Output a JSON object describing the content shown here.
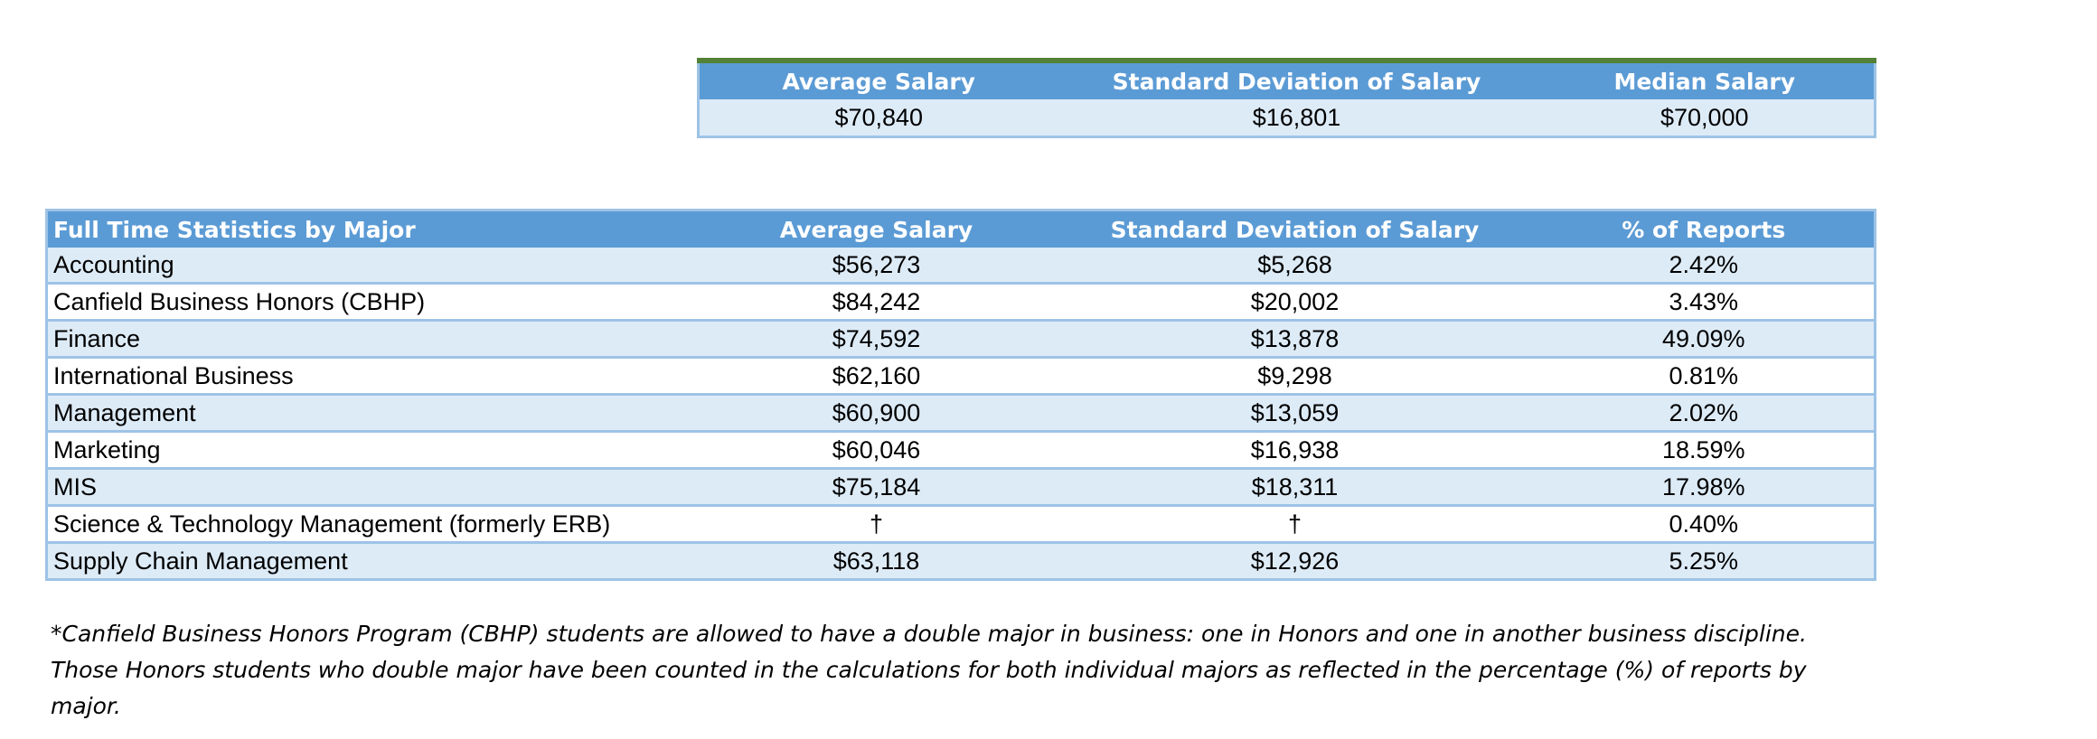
{
  "summary": {
    "headers": [
      "Average Salary",
      "Standard Deviation of Salary",
      "Median Salary"
    ],
    "values": [
      "$70,840",
      "$16,801",
      "$70,000"
    ]
  },
  "majors": {
    "headers": [
      "Full Time  Statistics by Major",
      "Average Salary",
      "Standard Deviation of Salary",
      "% of Reports"
    ],
    "rows": [
      [
        "Accounting",
        "$56,273",
        "$5,268",
        "2.42%"
      ],
      [
        "Canfield Business Honors (CBHP)",
        "$84,242",
        "$20,002",
        "3.43%"
      ],
      [
        "Finance",
        "$74,592",
        "$13,878",
        "49.09%"
      ],
      [
        "International Business",
        "$62,160",
        "$9,298",
        "0.81%"
      ],
      [
        "Management",
        "$60,900",
        "$13,059",
        "2.02%"
      ],
      [
        "Marketing",
        "$60,046",
        "$16,938",
        "18.59%"
      ],
      [
        "MIS",
        "$75,184",
        "$18,311",
        "17.98%"
      ],
      [
        "Science & Technology Management (formerly ERB)",
        "†",
        "†",
        "0.40%"
      ],
      [
        "Supply Chain Management",
        "$63,118",
        "$12,926",
        "5.25%"
      ]
    ]
  },
  "footnote": {
    "line1": "*Canfield Business Honors Program (CBHP) students are allowed to have a double major in business: one in Honors and one in another business discipline.",
    "line2": "Those Honors students who double major have been counted in the calculations for both individual majors as reflected in the percentage (%) of reports by",
    "line3": "major."
  },
  "colors": {
    "header_bg": "#5b9bd5",
    "row_shade": "#ddebf7",
    "border": "#9dc3e6",
    "top_rule": "#538135"
  }
}
